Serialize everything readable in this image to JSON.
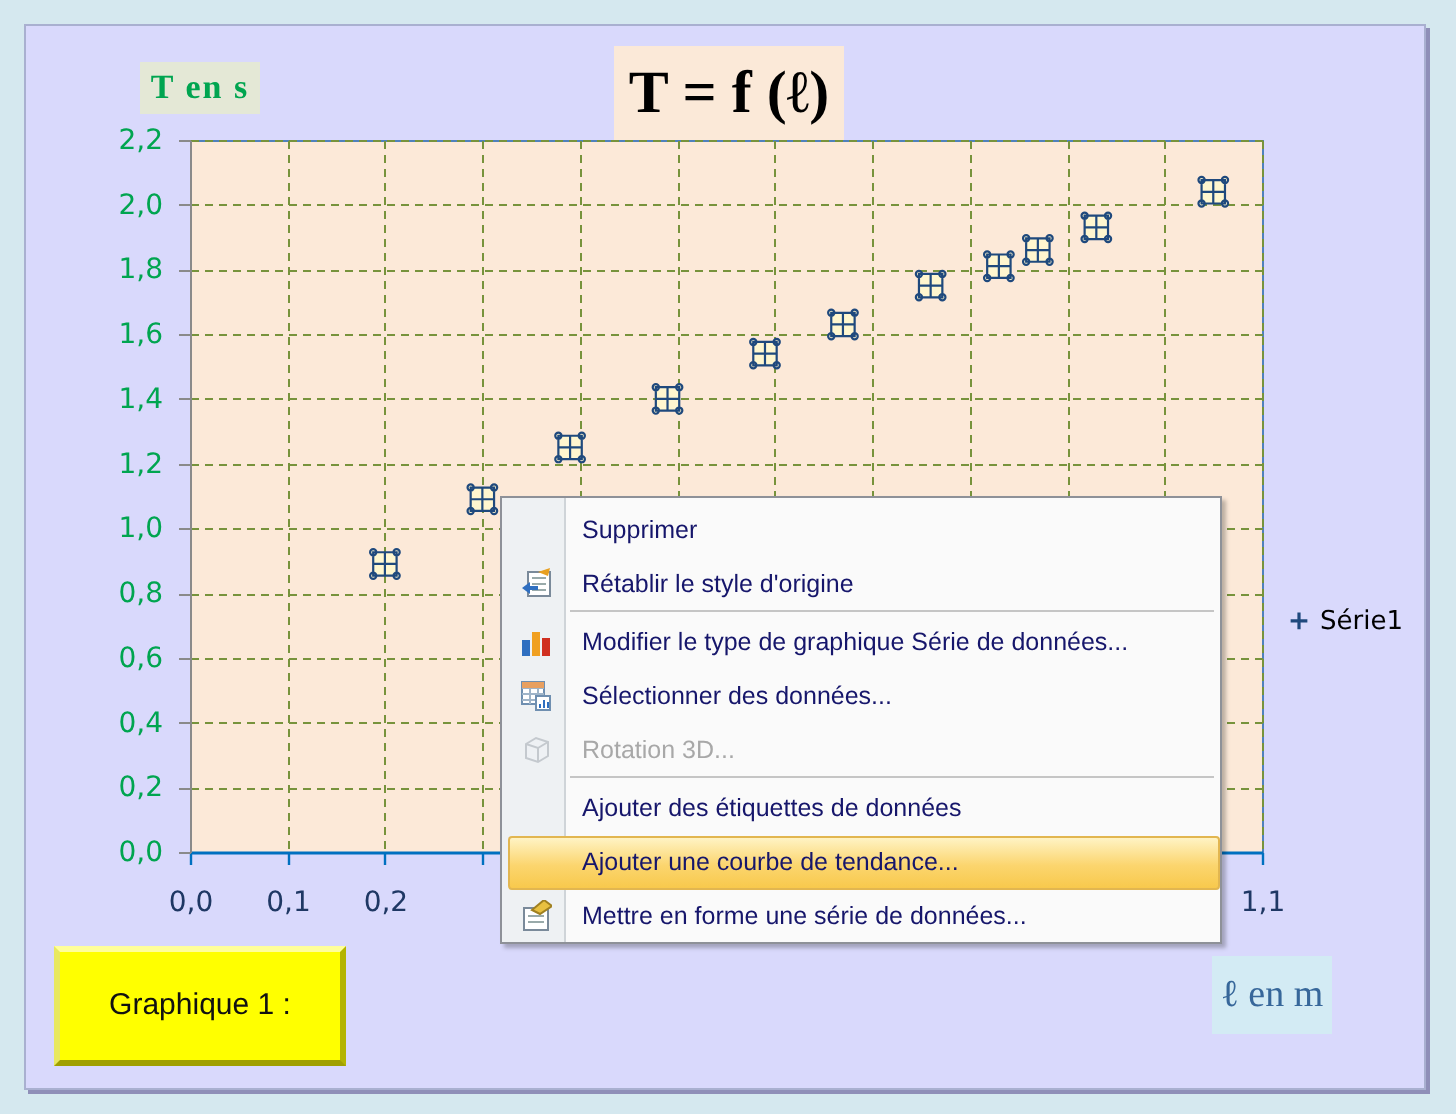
{
  "chart_data": {
    "type": "scatter",
    "title": "T = f (ℓ)",
    "xlabel": "ℓ en m",
    "ylabel": "T en s",
    "annotations": [
      "Graphique 1 :",
      "Supprimer",
      "Rétablir le style d'origine",
      "Modifier le type de graphique Série de données...",
      "Sélectionner des données...",
      "Rotation 3D...",
      "Ajouter des étiquettes de données",
      "Ajouter une courbe de tendance...",
      "Mettre en forme une série de données..."
    ],
    "x": [
      0.2,
      0.3,
      0.39,
      0.49,
      0.59,
      0.67,
      0.76,
      0.83,
      0.87,
      0.93,
      1.05
    ],
    "series": [
      {
        "name": "Série1",
        "color": "#1f497d",
        "values": [
          0.89,
          1.09,
          1.25,
          1.4,
          1.54,
          1.63,
          1.75,
          1.81,
          1.86,
          1.93,
          2.04
        ]
      }
    ],
    "xlim": [
      0,
      1.1
    ],
    "ylim": [
      0,
      2.2
    ],
    "xticks": [
      {
        "value": 0,
        "label": "0,0"
      },
      {
        "value": 0.1,
        "label": "0,1"
      },
      {
        "value": 0.2,
        "label": "0,2"
      },
      {
        "value": 0.3,
        "label": null
      },
      {
        "value": 0.4,
        "label": null
      },
      {
        "value": 0.5,
        "label": null
      },
      {
        "value": 0.6,
        "label": null
      },
      {
        "value": 0.7,
        "label": null
      },
      {
        "value": 0.8,
        "label": null
      },
      {
        "value": 0.9,
        "label": null
      },
      {
        "value": 1,
        "label": null
      },
      {
        "value": 1.1,
        "label": "1,1"
      }
    ],
    "yticks": [
      {
        "value": 0,
        "label": "0,0"
      },
      {
        "value": 0.2,
        "label": "0,2"
      },
      {
        "value": 0.4,
        "label": "0,4"
      },
      {
        "value": 0.6,
        "label": "0,6"
      },
      {
        "value": 0.8,
        "label": "0,8"
      },
      {
        "value": 1,
        "label": "1,0"
      },
      {
        "value": 1.2,
        "label": "1,2"
      },
      {
        "value": 1.4,
        "label": "1,4"
      },
      {
        "value": 1.6,
        "label": "1,6"
      },
      {
        "value": 1.8,
        "label": "1,8"
      },
      {
        "value": 2,
        "label": "2,0"
      },
      {
        "value": 2.2,
        "label": "2,2"
      }
    ],
    "grid": true,
    "legend": "right",
    "marker": "cross"
  }
}
